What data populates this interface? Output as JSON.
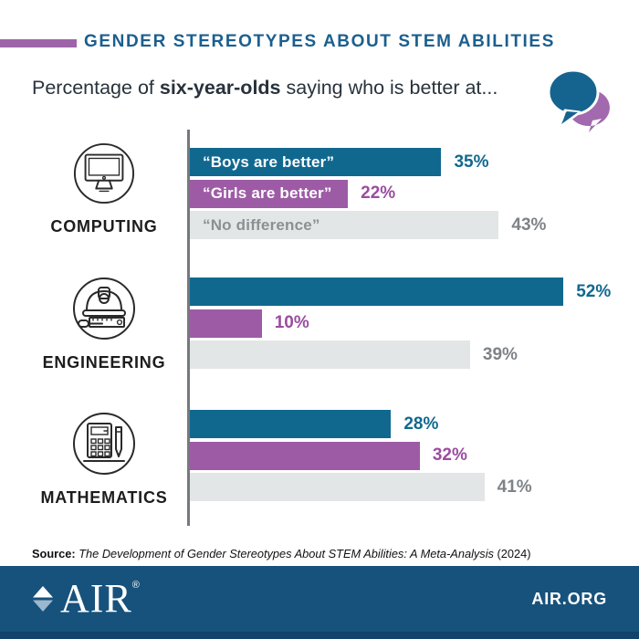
{
  "header": {
    "title": "GENDER STEREOTYPES ABOUT STEM ABILITIES",
    "title_color": "#1b5f8e",
    "accent_color": "#9e64a8"
  },
  "subtitle": {
    "prefix": "Percentage of ",
    "emphasis": "six-year-olds",
    "suffix": " saying who is better at..."
  },
  "icons": {
    "speech_bubbles": "speech-bubbles-icon",
    "computing": "computer-monitor-icon",
    "engineering": "hard-hat-tools-icon",
    "mathematics": "calculator-pencil-icon"
  },
  "chart_data": {
    "type": "bar",
    "orientation": "horizontal",
    "unit": "%",
    "grid": false,
    "xlim": [
      0,
      57
    ],
    "categories": [
      "COMPUTING",
      "ENGINEERING",
      "MATHEMATICS"
    ],
    "series": [
      {
        "name": "“Boys are better”",
        "color": "#11688f",
        "values": [
          35,
          52,
          28
        ]
      },
      {
        "name": "“Girls are better”",
        "color": "#9d5ba6",
        "values": [
          22,
          10,
          32
        ]
      },
      {
        "name": "“No difference”",
        "color": "#e3e6e6",
        "values": [
          43,
          39,
          41
        ]
      }
    ],
    "value_labels": [
      [
        "35%",
        "52%",
        "28%"
      ],
      [
        "22%",
        "10%",
        "32%"
      ],
      [
        "43%",
        "39%",
        "41%"
      ]
    ],
    "legend": "labels shown inside first category bars"
  },
  "source": {
    "label": "Source:",
    "citation": " The Development of Gender Stereotypes About STEM Abilities: A Meta-Analysis",
    "year": " (2024)"
  },
  "footer": {
    "brand": "AIR",
    "registered": "®",
    "site": "AIR.ORG",
    "bg_color": "#17527c"
  }
}
